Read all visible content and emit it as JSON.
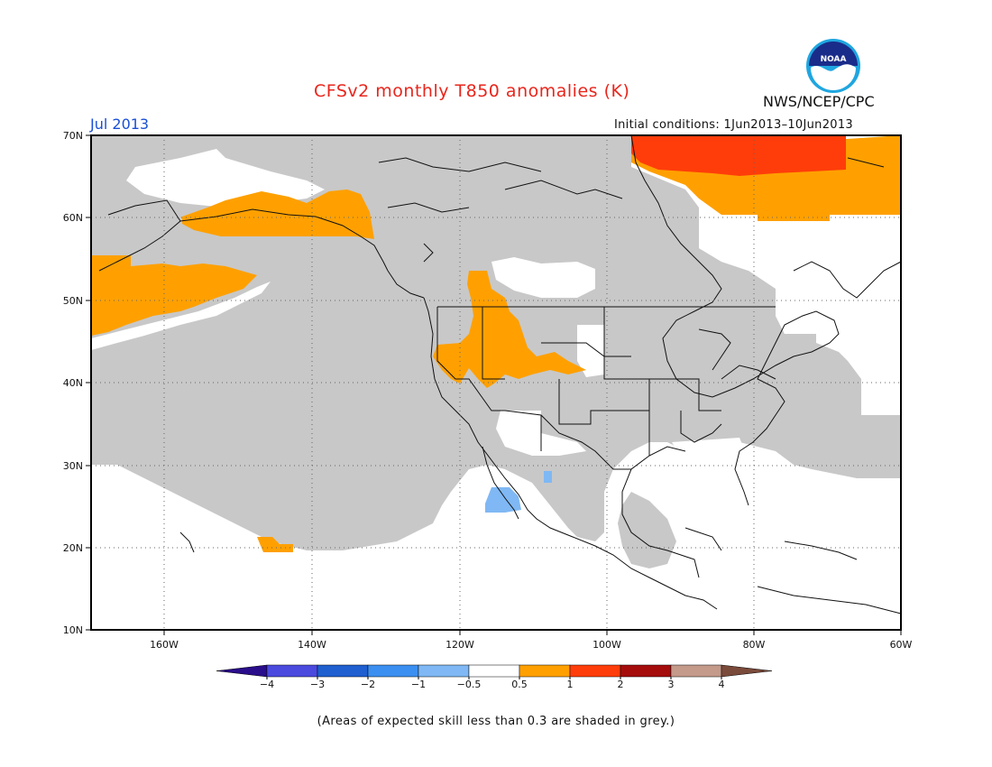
{
  "title": "CFSv2 monthly T850 anomalies (K)",
  "month": "Jul 2013",
  "initial_conditions": "Initial conditions: 1Jun2013–10Jun2013",
  "org": "NWS/NCEP/CPC",
  "logo_text": "NOAA",
  "note": "(Areas of expected skill less than 0.3 are shaded in grey.)",
  "lat_labels": [
    "70N",
    "60N",
    "50N",
    "40N",
    "30N",
    "20N",
    "10N"
  ],
  "lon_labels": [
    "160W",
    "140W",
    "120W",
    "100W",
    "80W",
    "60W"
  ],
  "colorbar": {
    "labels": [
      "−4",
      "−3",
      "−2",
      "−1",
      "−0.5",
      "0.5",
      "1",
      "2",
      "3",
      "4"
    ],
    "colors": [
      "#2a0d8a",
      "#4a4adf",
      "#1f5fcf",
      "#3b8ff0",
      "#7fb8f4",
      "#ffffff",
      "#ffa000",
      "#ff3d0a",
      "#a50d0d",
      "#c49a8a",
      "#7a4a3a"
    ]
  },
  "colors": {
    "skill_grey": "#c8c8c8",
    "anom_0_5_1": "#ffa000",
    "anom_1_2": "#ff3d0a",
    "anom_neg_0_5_1": "#7fb8f4"
  }
}
